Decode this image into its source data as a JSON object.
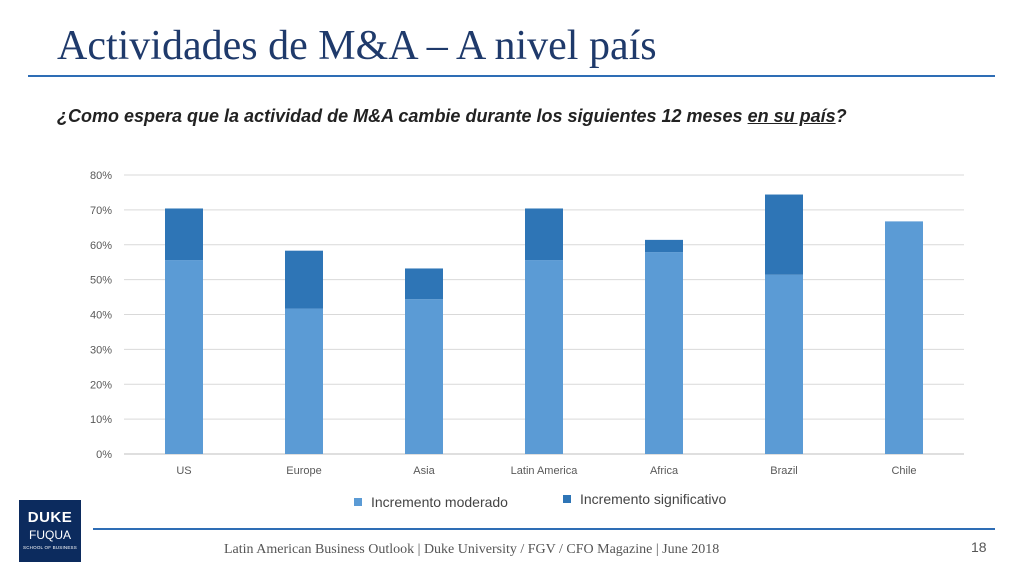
{
  "slide": {
    "title": "Actividades de M&A – A nivel país",
    "question_pre": "¿Como espera que la actividad de M&A cambie durante los siguientes 12 meses ",
    "question_underlined": "en su país",
    "question_post": "?",
    "footer": "Latin American Business Outlook | Duke University / FGV / CFO Magazine | June 2018",
    "page_number": "18",
    "logo": {
      "line1": "DUKE",
      "line2": "FUQUA",
      "line3": "SCHOOL OF BUSINESS"
    }
  },
  "chart_data": {
    "type": "bar",
    "stacked": true,
    "categories": [
      "US",
      "Europe",
      "Asia",
      "Latin America",
      "Africa",
      "Brazil",
      "Chile"
    ],
    "series": [
      {
        "name": "Incremento moderado",
        "color": "#5b9bd5",
        "values": [
          55.6,
          41.7,
          44.4,
          55.6,
          57.9,
          51.4,
          66.7
        ]
      },
      {
        "name": "Incremento significativo",
        "color": "#2e75b6",
        "values": [
          14.8,
          16.6,
          8.8,
          14.8,
          3.5,
          23.0,
          0
        ]
      }
    ],
    "ylim": [
      0,
      80
    ],
    "ytick_labels": [
      "0%",
      "10%",
      "20%",
      "30%",
      "40%",
      "50%",
      "60%",
      "70%",
      "80%"
    ],
    "grid": true,
    "legend_position": "bottom"
  }
}
